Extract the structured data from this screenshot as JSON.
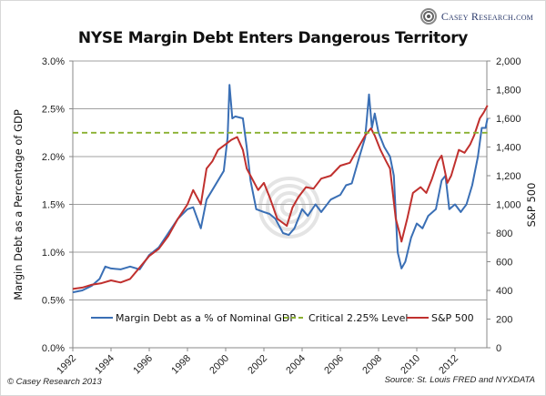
{
  "header": {
    "title": "NYSE Margin Debt Enters Dangerous Territory",
    "brand": "Casey Research.com"
  },
  "footer": {
    "copyright": "© Casey Research 2013",
    "source": "Source: St. Louis FRED and NYXDATA"
  },
  "colors": {
    "margin_debt": "#3a6fb5",
    "critical": "#8ab030",
    "sp500": "#c0302e",
    "grid": "#a0a0a0"
  },
  "chart_data": {
    "type": "line",
    "title": "NYSE Margin Debt Enters Dangerous Territory",
    "xlabel": "",
    "ylabel": "Margin Debt as a Percentage of GDP",
    "y2label": "S&P 500",
    "xlim": [
      1992,
      2013.7
    ],
    "ylim": [
      0,
      3.0
    ],
    "y2lim": [
      0,
      2000
    ],
    "grid": true,
    "legend_position": "bottom-inside",
    "x_ticks": [
      "1992",
      "1994",
      "1996",
      "1998",
      "2000",
      "2002",
      "2004",
      "2006",
      "2008",
      "2010",
      "2012"
    ],
    "y_ticks": [
      "0.0%",
      "0.5%",
      "1.0%",
      "1.5%",
      "2.0%",
      "2.5%",
      "3.0%"
    ],
    "y2_ticks": [
      "0",
      "200",
      "400",
      "600",
      "800",
      "1,000",
      "1,200",
      "1,400",
      "1,600",
      "1,800",
      "2,000"
    ],
    "legend": [
      "Margin Debt as a % of Nominal GDP",
      "Critical 2.25% Level",
      "S&P 500"
    ],
    "series": [
      {
        "name": "Margin Debt as a % of Nominal GDP",
        "axis": "left",
        "x": [
          1992.0,
          1992.5,
          1993.0,
          1993.4,
          1993.7,
          1994.0,
          1994.5,
          1995.0,
          1995.5,
          1996.0,
          1996.5,
          1997.0,
          1997.5,
          1998.0,
          1998.3,
          1998.7,
          1999.0,
          1999.3,
          1999.6,
          1999.9,
          2000.1,
          2000.2,
          2000.35,
          2000.5,
          2000.9,
          2001.1,
          2001.3,
          2001.6,
          2002.0,
          2002.3,
          2002.6,
          2003.0,
          2003.3,
          2003.6,
          2004.0,
          2004.3,
          2004.7,
          2005.0,
          2005.5,
          2006.0,
          2006.3,
          2006.6,
          2007.0,
          2007.3,
          2007.5,
          2007.65,
          2007.8,
          2008.0,
          2008.3,
          2008.6,
          2008.8,
          2009.0,
          2009.2,
          2009.4,
          2009.7,
          2010.0,
          2010.3,
          2010.6,
          2011.0,
          2011.3,
          2011.5,
          2011.7,
          2012.0,
          2012.3,
          2012.6,
          2012.9,
          2013.2,
          2013.4,
          2013.6,
          2013.7
        ],
        "values": [
          0.58,
          0.6,
          0.65,
          0.72,
          0.85,
          0.83,
          0.82,
          0.85,
          0.82,
          0.97,
          1.05,
          1.2,
          1.35,
          1.45,
          1.47,
          1.25,
          1.55,
          1.65,
          1.75,
          1.85,
          2.2,
          2.75,
          2.4,
          2.42,
          2.4,
          2.1,
          1.75,
          1.45,
          1.42,
          1.4,
          1.35,
          1.2,
          1.18,
          1.25,
          1.45,
          1.38,
          1.5,
          1.42,
          1.55,
          1.6,
          1.7,
          1.72,
          2.0,
          2.2,
          2.65,
          2.3,
          2.45,
          2.25,
          2.1,
          2.0,
          1.8,
          1.0,
          0.83,
          0.9,
          1.15,
          1.3,
          1.25,
          1.38,
          1.45,
          1.75,
          1.8,
          1.45,
          1.5,
          1.42,
          1.5,
          1.7,
          2.0,
          2.3,
          2.3,
          2.4
        ]
      },
      {
        "name": "Critical 2.25% Level",
        "axis": "left",
        "x": [
          1992.0,
          2013.7
        ],
        "values": [
          2.25,
          2.25
        ]
      },
      {
        "name": "S&P 500",
        "axis": "right",
        "x": [
          1992.0,
          1992.5,
          1993.0,
          1993.5,
          1994.0,
          1994.5,
          1995.0,
          1995.5,
          1996.0,
          1996.5,
          1997.0,
          1997.5,
          1998.0,
          1998.3,
          1998.7,
          1999.0,
          1999.3,
          1999.6,
          2000.0,
          2000.3,
          2000.6,
          2000.9,
          2001.1,
          2001.3,
          2001.7,
          2002.0,
          2002.3,
          2002.7,
          2003.0,
          2003.2,
          2003.5,
          2003.8,
          2004.2,
          2004.6,
          2005.0,
          2005.5,
          2006.0,
          2006.5,
          2007.0,
          2007.3,
          2007.6,
          2007.8,
          2008.1,
          2008.4,
          2008.6,
          2008.9,
          2009.1,
          2009.2,
          2009.5,
          2009.8,
          2010.2,
          2010.5,
          2010.8,
          2011.1,
          2011.3,
          2011.6,
          2011.8,
          2012.2,
          2012.5,
          2012.8,
          2013.0,
          2013.3,
          2013.5,
          2013.7
        ],
        "values": [
          410,
          420,
          440,
          450,
          470,
          455,
          480,
          560,
          640,
          690,
          780,
          900,
          1000,
          1100,
          1000,
          1250,
          1300,
          1380,
          1420,
          1450,
          1470,
          1380,
          1250,
          1200,
          1100,
          1150,
          1050,
          900,
          870,
          850,
          980,
          1050,
          1120,
          1110,
          1180,
          1200,
          1270,
          1290,
          1410,
          1480,
          1530,
          1480,
          1380,
          1300,
          1250,
          900,
          800,
          740,
          900,
          1080,
          1120,
          1080,
          1180,
          1300,
          1340,
          1150,
          1200,
          1380,
          1360,
          1420,
          1480,
          1600,
          1640,
          1690
        ]
      }
    ]
  }
}
